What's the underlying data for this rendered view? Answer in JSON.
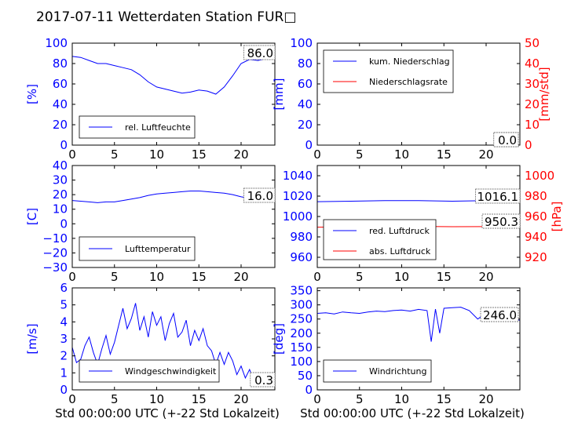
{
  "title": "2017-07-11 Wetterdaten Station FUR□",
  "colors": {
    "blue": "#0000ff",
    "red": "#ff0000",
    "black": "#000000"
  },
  "chart_data": [
    {
      "id": "humidity",
      "type": "line",
      "xlim": [
        0,
        24
      ],
      "xticks": [
        0,
        5,
        10,
        15,
        20
      ],
      "xtick_labels": [
        "0",
        "5",
        "10",
        "15",
        "20"
      ],
      "ylim": [
        0,
        100
      ],
      "yticks": [
        0,
        20,
        40,
        60,
        80,
        100
      ],
      "ytick_labels": [
        "0",
        "20",
        "40",
        "60",
        "80",
        "100"
      ],
      "ylabel": "[%]",
      "xlabel": "",
      "current_value": "86.0",
      "series": [
        {
          "name": "rel. Luftfeuchte",
          "color": "#0000ff",
          "x": [
            0,
            1,
            2,
            3,
            4,
            5,
            6,
            7,
            8,
            9,
            10,
            11,
            12,
            13,
            14,
            15,
            16,
            17,
            18,
            19,
            20,
            21,
            22,
            23,
            24
          ],
          "y": [
            87,
            86,
            83,
            80,
            80,
            78,
            76,
            74,
            69,
            62,
            57,
            55,
            53,
            51,
            52,
            54,
            53,
            50,
            57,
            68,
            80,
            84,
            83,
            85,
            86
          ]
        }
      ]
    },
    {
      "id": "precip",
      "type": "line",
      "xlim": [
        0,
        24
      ],
      "xticks": [
        0,
        5,
        10,
        15,
        20
      ],
      "xtick_labels": [
        "0",
        "5",
        "10",
        "15",
        "20"
      ],
      "ylim": [
        0,
        100
      ],
      "yticks": [
        0,
        20,
        40,
        60,
        80,
        100
      ],
      "ytick_labels": [
        "0",
        "20",
        "40",
        "60",
        "80",
        "100"
      ],
      "ylabel": "[mm]",
      "y2lim": [
        0,
        50
      ],
      "y2ticks": [
        0,
        10,
        20,
        30,
        40,
        50
      ],
      "y2tick_labels": [
        "0",
        "10",
        "20",
        "30",
        "40",
        "50"
      ],
      "y2label": "[mm/std]",
      "xlabel": "",
      "current_value": "0.0",
      "current_value2": "0.0",
      "series": [
        {
          "name": "kum. Niederschlag",
          "color": "#0000ff",
          "axis": "left",
          "x": [
            0,
            24
          ],
          "y": [
            0,
            0
          ]
        },
        {
          "name": "Niederschlagsrate",
          "color": "#ff0000",
          "axis": "right",
          "x": [
            0,
            24
          ],
          "y": [
            0,
            0
          ]
        }
      ]
    },
    {
      "id": "temperature",
      "type": "line",
      "xlim": [
        0,
        24
      ],
      "xticks": [
        0,
        5,
        10,
        15,
        20
      ],
      "xtick_labels": [
        "0",
        "5",
        "10",
        "15",
        "20"
      ],
      "ylim": [
        -30,
        40
      ],
      "yticks": [
        -30,
        -20,
        -10,
        0,
        10,
        20,
        30,
        40
      ],
      "ytick_labels": [
        "−30",
        "−20",
        "−10",
        "0",
        "10",
        "20",
        "30",
        "40"
      ],
      "ylabel": "[C]",
      "xlabel": "",
      "current_value": "16.0",
      "series": [
        {
          "name": "Lufttemperatur",
          "color": "#0000ff",
          "x": [
            0,
            1,
            2,
            3,
            4,
            5,
            6,
            7,
            8,
            9,
            10,
            11,
            12,
            13,
            14,
            15,
            16,
            17,
            18,
            19,
            20,
            21,
            22,
            23,
            24
          ],
          "y": [
            16,
            15.5,
            15,
            14.5,
            15,
            15,
            16,
            17,
            18,
            19.5,
            20.5,
            21,
            21.5,
            22,
            22.5,
            22.5,
            22,
            21.5,
            21,
            20,
            18.5,
            17.5,
            16.5,
            16,
            16
          ]
        }
      ]
    },
    {
      "id": "pressure",
      "type": "line",
      "xlim": [
        0,
        24
      ],
      "xticks": [
        0,
        5,
        10,
        15,
        20
      ],
      "xtick_labels": [
        "0",
        "5",
        "10",
        "15",
        "20"
      ],
      "ylim": [
        950,
        1050
      ],
      "yticks": [
        960,
        980,
        1000,
        1020,
        1040
      ],
      "ytick_labels": [
        "960",
        "980",
        "1000",
        "1020",
        "1040"
      ],
      "y2lim": [
        910,
        1010
      ],
      "y2ticks": [
        920,
        940,
        960,
        980,
        1000
      ],
      "y2tick_labels": [
        "920",
        "940",
        "960",
        "980",
        "1000"
      ],
      "y2label": "[hPa]",
      "xlabel": "",
      "current_value": "1016.1",
      "current_value2": "950.3",
      "series": [
        {
          "name": "red. Luftdruck",
          "color": "#0000ff",
          "axis": "left",
          "x": [
            0,
            4,
            8,
            12,
            16,
            20,
            24
          ],
          "y": [
            1014.5,
            1015,
            1015.5,
            1015.5,
            1015,
            1015.5,
            1016.1
          ]
        },
        {
          "name": "abs. Luftdruck",
          "color": "#ff0000",
          "axis": "right",
          "x": [
            0,
            4,
            8,
            12,
            16,
            20,
            24
          ],
          "y": [
            949.5,
            949.8,
            950.2,
            950.3,
            950,
            950.1,
            950.3
          ]
        }
      ]
    },
    {
      "id": "wind",
      "type": "line",
      "xlim": [
        0,
        24
      ],
      "xticks": [
        0,
        5,
        10,
        15,
        20
      ],
      "xtick_labels": [
        "0",
        "5",
        "10",
        "15",
        "20"
      ],
      "ylim": [
        0,
        6
      ],
      "yticks": [
        0,
        1,
        2,
        3,
        4,
        5,
        6
      ],
      "ytick_labels": [
        "0",
        "1",
        "2",
        "3",
        "4",
        "5",
        "6"
      ],
      "ylabel": "[m/s]",
      "xlabel": "Std 00:00:00 UTC (+-22 Std Lokalzeit)",
      "current_value": "0.3",
      "series": [
        {
          "name": "Windgeschwindigkeit",
          "color": "#0000ff",
          "x": [
            0,
            0.5,
            1,
            1.5,
            2,
            2.5,
            3,
            3.5,
            4,
            4.5,
            5,
            5.5,
            6,
            6.5,
            7,
            7.5,
            8,
            8.5,
            9,
            9.5,
            10,
            10.5,
            11,
            11.5,
            12,
            12.5,
            13,
            13.5,
            14,
            14.5,
            15,
            15.5,
            16,
            16.5,
            17,
            17.5,
            18,
            18.5,
            19,
            19.5,
            20,
            20.5,
            21,
            21.5,
            22,
            22.5,
            23,
            23.5,
            24
          ],
          "y": [
            2.5,
            1.6,
            1.8,
            2.6,
            3.1,
            2.2,
            1.5,
            2.4,
            3.2,
            2.1,
            2.8,
            3.8,
            4.8,
            3.6,
            4.2,
            5.1,
            3.5,
            4.3,
            3.1,
            4.6,
            3.8,
            4.3,
            2.9,
            3.9,
            4.5,
            3.1,
            3.4,
            4.1,
            2.6,
            3.5,
            2.9,
            3.6,
            2.6,
            2.3,
            1.5,
            2.2,
            1.5,
            2.2,
            1.7,
            0.9,
            1.4,
            0.7,
            1.2,
            0.5,
            0.9,
            0.4,
            0.6,
            0.3,
            0.3
          ]
        }
      ]
    },
    {
      "id": "direction",
      "type": "line",
      "xlim": [
        0,
        24
      ],
      "xticks": [
        0,
        5,
        10,
        15,
        20
      ],
      "xtick_labels": [
        "0",
        "5",
        "10",
        "15",
        "20"
      ],
      "ylim": [
        0,
        360
      ],
      "yticks": [
        0,
        50,
        100,
        150,
        200,
        250,
        300,
        350
      ],
      "ytick_labels": [
        "0",
        "50",
        "100",
        "150",
        "200",
        "250",
        "300",
        "350"
      ],
      "ylabel": "[deg]",
      "xlabel": "Std 00:00:00 UTC (+-22 Std Lokalzeit)",
      "current_value": "246.0",
      "series": [
        {
          "name": "Windrichtung",
          "color": "#0000ff",
          "x": [
            0,
            1,
            2,
            3,
            4,
            5,
            6,
            7,
            8,
            9,
            10,
            11,
            12,
            13,
            13.5,
            14,
            14.5,
            15,
            16,
            17,
            18,
            19,
            20,
            21,
            22,
            23,
            24
          ],
          "y": [
            270,
            272,
            268,
            275,
            272,
            270,
            275,
            278,
            276,
            280,
            282,
            278,
            284,
            280,
            170,
            285,
            200,
            288,
            290,
            292,
            280,
            250,
            270,
            265,
            260,
            250,
            246
          ]
        }
      ]
    }
  ]
}
